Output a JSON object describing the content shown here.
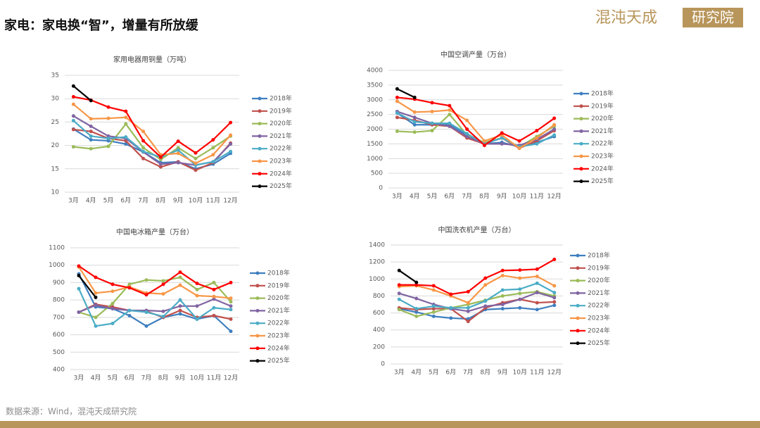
{
  "header": {
    "title": "家电：家电换“智”，增量有所放缓",
    "logo_left": "混沌天成",
    "logo_right": "研究院"
  },
  "footer": {
    "source": "数据来源：Wind，混沌天成研究院"
  },
  "chart_data": [
    {
      "type": "line",
      "title": "家用电器用铜量（万吨）",
      "categories": [
        "3月",
        "4月",
        "5月",
        "6月",
        "7月",
        "8月",
        "9月",
        "10月",
        "11月",
        "12月"
      ],
      "ylim": [
        10,
        35
      ],
      "yticks": [
        10,
        15,
        20,
        25,
        30,
        35
      ],
      "grid": true,
      "series": [
        {
          "name": "2018年",
          "color": "#3f7fbf",
          "values": [
            23.5,
            21.2,
            21,
            20.3,
            18.6,
            16.3,
            16.5,
            15,
            16,
            18.3
          ]
        },
        {
          "name": "2019年",
          "color": "#c0504d",
          "values": [
            23.4,
            23,
            21.5,
            21,
            17.2,
            15.4,
            16.5,
            14.7,
            16.3,
            20.5
          ]
        },
        {
          "name": "2020年",
          "color": "#9bbb59",
          "values": [
            19.7,
            19.3,
            19.8,
            24.6,
            19.5,
            17,
            19.5,
            17.2,
            19.5,
            22
          ]
        },
        {
          "name": "2021年",
          "color": "#8064a2",
          "values": [
            26.3,
            24.1,
            22,
            21.5,
            18.6,
            16,
            16.3,
            15.8,
            16.5,
            20.3
          ]
        },
        {
          "name": "2022年",
          "color": "#4bacc6",
          "values": [
            25.3,
            22,
            21.5,
            21.8,
            18.7,
            17.5,
            19,
            15.8,
            16.5,
            18.7
          ]
        },
        {
          "name": "2023年",
          "color": "#f79646",
          "values": [
            28.8,
            25.7,
            25.8,
            26,
            23,
            18,
            18.3,
            16.2,
            18,
            22.2
          ]
        },
        {
          "name": "2024年",
          "color": "#ff0000",
          "values": [
            30.4,
            29.7,
            28.2,
            27.3,
            21,
            17.5,
            20.9,
            18.4,
            21.2,
            24.9
          ]
        },
        {
          "name": "2025年",
          "color": "#000000",
          "values": [
            32.7,
            29.6,
            null,
            null,
            null,
            null,
            null,
            null,
            null,
            null
          ]
        }
      ]
    },
    {
      "type": "line",
      "title": "中国空调产量（万台）",
      "categories": [
        "3月",
        "4月",
        "5月",
        "6月",
        "7月",
        "8月",
        "9月",
        "10月",
        "11月",
        "12月"
      ],
      "ylim": [
        0,
        4000
      ],
      "yticks": [
        0,
        500,
        1000,
        1500,
        2000,
        2500,
        3000,
        3500,
        4000
      ],
      "grid": true,
      "series": [
        {
          "name": "2018年",
          "color": "#3f7fbf",
          "values": [
            2550,
            2150,
            2150,
            2150,
            1800,
            1500,
            1550,
            1400,
            1550,
            1750
          ]
        },
        {
          "name": "2019年",
          "color": "#c0504d",
          "values": [
            2400,
            2300,
            2150,
            2100,
            1700,
            1500,
            1700,
            1350,
            1600,
            1950
          ]
        },
        {
          "name": "2020年",
          "color": "#9bbb59",
          "values": [
            1930,
            1900,
            1950,
            2500,
            1800,
            1550,
            1700,
            1400,
            1750,
            2100
          ]
        },
        {
          "name": "2021年",
          "color": "#8064a2",
          "values": [
            2600,
            2400,
            2200,
            2100,
            1750,
            1500,
            1500,
            1450,
            1650,
            2000
          ]
        },
        {
          "name": "2022年",
          "color": "#4bacc6",
          "values": [
            2550,
            2250,
            2200,
            2200,
            1850,
            1500,
            1700,
            1400,
            1500,
            1800
          ]
        },
        {
          "name": "2023年",
          "color": "#f79646",
          "values": [
            2950,
            2580,
            2600,
            2650,
            2300,
            1600,
            1800,
            1350,
            1700,
            2150
          ]
        },
        {
          "name": "2024年",
          "color": "#ff0000",
          "values": [
            3080,
            3020,
            2900,
            2800,
            2000,
            1450,
            1870,
            1600,
            1950,
            2370
          ]
        },
        {
          "name": "2025年",
          "color": "#000000",
          "values": [
            3370,
            3080,
            null,
            null,
            null,
            null,
            null,
            null,
            null,
            null
          ]
        }
      ]
    },
    {
      "type": "line",
      "title": "中国电冰箱产量（万台）",
      "categories": [
        "3月",
        "4月",
        "5月",
        "6月",
        "7月",
        "8月",
        "9月",
        "10月",
        "11月",
        "12月"
      ],
      "ylim": [
        400,
        1100
      ],
      "yticks": [
        400,
        500,
        600,
        700,
        800,
        900,
        1000,
        1100
      ],
      "grid": true,
      "series": [
        {
          "name": "2018年",
          "color": "#3f7fbf",
          "values": [
            950,
            760,
            750,
            710,
            650,
            700,
            720,
            690,
            710,
            620
          ]
        },
        {
          "name": "2019年",
          "color": "#c0504d",
          "values": [
            730,
            775,
            760,
            740,
            735,
            700,
            740,
            700,
            710,
            690
          ]
        },
        {
          "name": "2020年",
          "color": "#9bbb59",
          "values": [
            730,
            700,
            780,
            890,
            915,
            910,
            930,
            860,
            900,
            790
          ]
        },
        {
          "name": "2021年",
          "color": "#8064a2",
          "values": [
            730,
            770,
            750,
            740,
            740,
            735,
            765,
            765,
            805,
            765
          ]
        },
        {
          "name": "2022年",
          "color": "#4bacc6",
          "values": [
            865,
            650,
            665,
            740,
            730,
            705,
            800,
            690,
            755,
            745
          ]
        },
        {
          "name": "2023年",
          "color": "#f79646",
          "values": [
            990,
            840,
            850,
            875,
            840,
            835,
            885,
            825,
            820,
            810
          ]
        },
        {
          "name": "2024年",
          "color": "#ff0000",
          "values": [
            995,
            930,
            890,
            870,
            830,
            890,
            960,
            895,
            860,
            900
          ]
        },
        {
          "name": "2025年",
          "color": "#000000",
          "values": [
            940,
            815,
            null,
            null,
            null,
            null,
            null,
            null,
            null,
            null
          ]
        }
      ]
    },
    {
      "type": "line",
      "title": "中国洗衣机产量（万台）",
      "categories": [
        "3月",
        "4月",
        "5月",
        "6月",
        "7月",
        "8月",
        "9月",
        "10月",
        "11月",
        "12月"
      ],
      "ylim": [
        0,
        1400
      ],
      "yticks": [
        0,
        200,
        400,
        600,
        800,
        1000,
        1200,
        1400
      ],
      "grid": true,
      "series": [
        {
          "name": "2018年",
          "color": "#3f7fbf",
          "values": [
            650,
            610,
            560,
            540,
            530,
            640,
            650,
            660,
            640,
            690
          ]
        },
        {
          "name": "2019年",
          "color": "#c0504d",
          "values": [
            660,
            640,
            650,
            650,
            500,
            660,
            720,
            760,
            720,
            730
          ]
        },
        {
          "name": "2020年",
          "color": "#9bbb59",
          "values": [
            640,
            560,
            610,
            660,
            700,
            750,
            800,
            830,
            850,
            800
          ]
        },
        {
          "name": "2021年",
          "color": "#8064a2",
          "values": [
            830,
            770,
            700,
            650,
            620,
            680,
            700,
            760,
            840,
            780
          ]
        },
        {
          "name": "2022年",
          "color": "#4bacc6",
          "values": [
            760,
            650,
            680,
            660,
            660,
            740,
            870,
            880,
            950,
            840
          ]
        },
        {
          "name": "2023年",
          "color": "#f79646",
          "values": [
            910,
            920,
            870,
            800,
            720,
            930,
            1040,
            1010,
            1030,
            920
          ]
        },
        {
          "name": "2024年",
          "color": "#ff0000",
          "values": [
            930,
            930,
            920,
            820,
            850,
            1010,
            1100,
            1105,
            1115,
            1230
          ]
        },
        {
          "name": "2025年",
          "color": "#000000",
          "values": [
            1100,
            960,
            null,
            null,
            null,
            null,
            null,
            null,
            null,
            null
          ]
        }
      ]
    }
  ]
}
